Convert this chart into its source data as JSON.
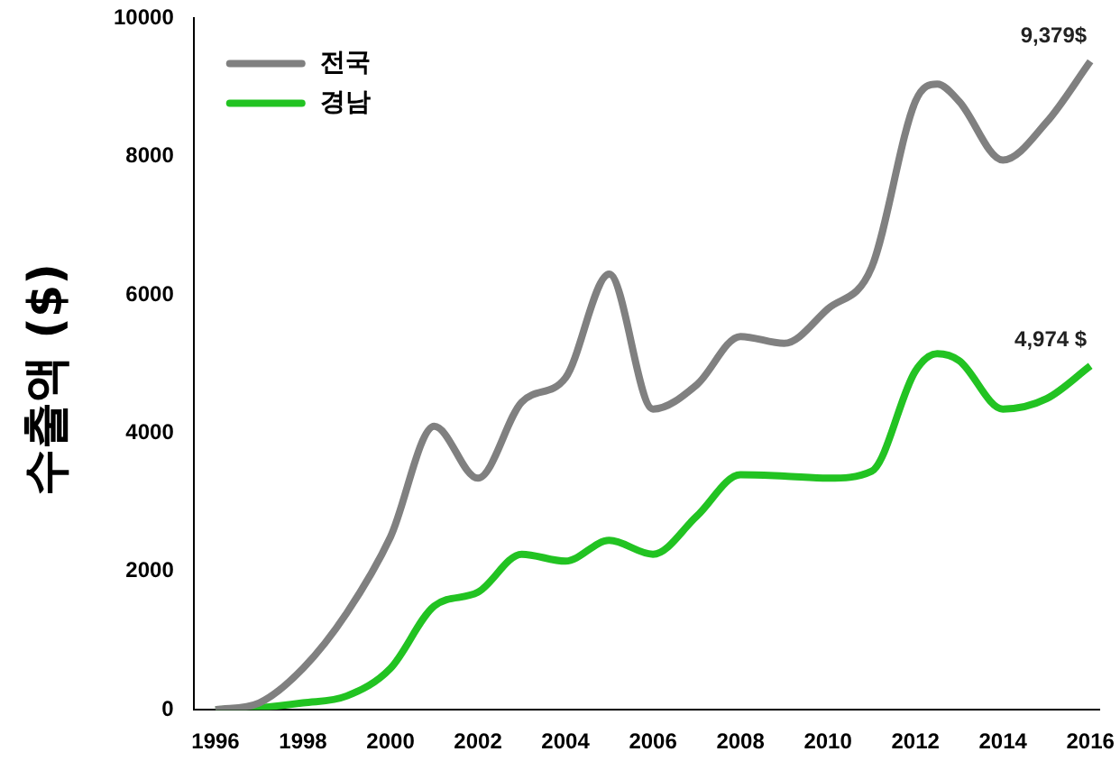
{
  "chart_data": {
    "type": "line",
    "ylabel": "수출액 ($)",
    "x": [
      1996,
      1997,
      1998,
      1999,
      2000,
      2001,
      2002,
      2003,
      2004,
      2005,
      2006,
      2007,
      2008,
      2009,
      2010,
      2011,
      2012,
      2012.5,
      2013,
      2014,
      2015,
      2016
    ],
    "series": [
      {
        "name": "전국",
        "color": "#808080",
        "values": [
          0,
          100,
          600,
          1400,
          2500,
          4100,
          3350,
          4450,
          4800,
          6300,
          4350,
          4700,
          5400,
          5300,
          5800,
          6400,
          8800,
          9050,
          8800,
          7950,
          8500,
          9379
        ]
      },
      {
        "name": "경남",
        "color": "#22c322",
        "values": [
          0,
          30,
          100,
          200,
          600,
          1500,
          1700,
          2250,
          2150,
          2450,
          2250,
          2800,
          3400,
          3380,
          3350,
          3450,
          4900,
          5150,
          5050,
          4350,
          4500,
          4974
        ]
      }
    ],
    "annotations": [
      {
        "text": "9,379$",
        "x": 2016,
        "y": 9379
      },
      {
        "text": "4,974 $",
        "x": 2016,
        "y": 4974
      }
    ],
    "xlim": [
      1995.5,
      2016.2
    ],
    "xticks": [
      1996,
      1998,
      2000,
      2002,
      2004,
      2006,
      2008,
      2010,
      2012,
      2014,
      2016
    ],
    "ylim": [
      0,
      10000
    ],
    "yticks": [
      0,
      2000,
      4000,
      6000,
      8000,
      10000
    ],
    "grid": false,
    "legend": "top left",
    "marker": "none",
    "line_style": "solid"
  }
}
